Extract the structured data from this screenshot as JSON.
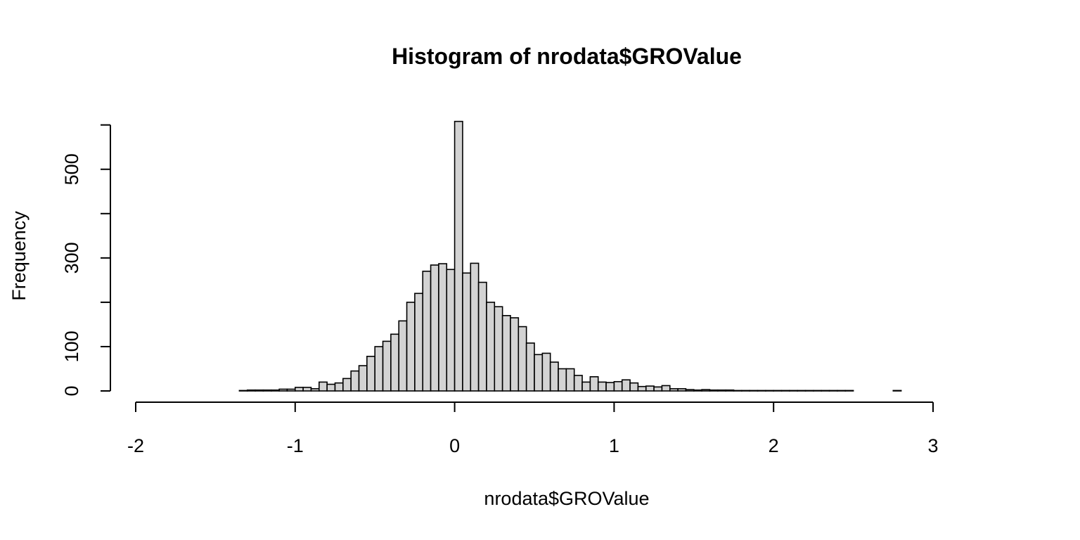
{
  "chart_data": {
    "type": "bar",
    "title": "Histogram of nrodata$GROValue",
    "xlabel": "nrodata$GROValue",
    "ylabel": "Frequency",
    "xlim": [
      -2,
      3.3
    ],
    "ylim": [
      0,
      600
    ],
    "xticks": [
      -2,
      -1,
      0,
      1,
      2,
      3
    ],
    "yticks": [
      0,
      100,
      300,
      500
    ],
    "xtick_labels": [
      "-2",
      "-1",
      "0",
      "1",
      "2",
      "3"
    ],
    "ytick_labels": [
      "0",
      "100",
      "300",
      "500"
    ],
    "bin_width": 0.05,
    "bin_start": -1.95,
    "counts": [
      0,
      0,
      0,
      0,
      0,
      0,
      0,
      0,
      0,
      0,
      0,
      0,
      1,
      2,
      2,
      2,
      2,
      4,
      4,
      8,
      8,
      5,
      20,
      15,
      18,
      28,
      45,
      57,
      78,
      100,
      112,
      128,
      158,
      200,
      220,
      270,
      284,
      287,
      274,
      608,
      266,
      288,
      245,
      200,
      190,
      170,
      165,
      145,
      108,
      82,
      85,
      65,
      50,
      50,
      35,
      20,
      32,
      20,
      19,
      21,
      25,
      18,
      10,
      11,
      9,
      12,
      5,
      5,
      3,
      2,
      3,
      2,
      2,
      2,
      1,
      1,
      1,
      1,
      1,
      1,
      1,
      1,
      1,
      1,
      1,
      1,
      1,
      1,
      1,
      0,
      0,
      0,
      0,
      0,
      1,
      0,
      0,
      0,
      0,
      0,
      0,
      0,
      0,
      0,
      0,
      0
    ]
  }
}
